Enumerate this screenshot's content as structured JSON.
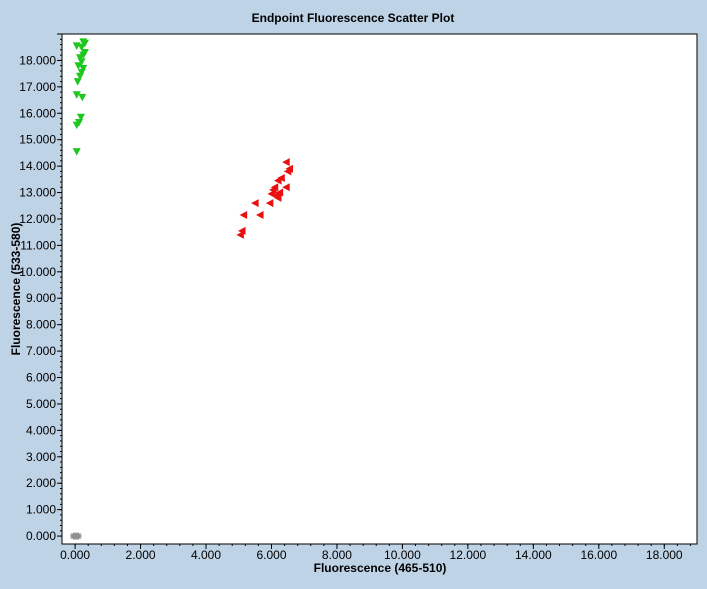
{
  "chart_data": {
    "type": "scatter",
    "title": "Endpoint Fluorescence Scatter Plot",
    "xlabel": "Fluorescence (465-510)",
    "ylabel": "Fluorescence (533-580)",
    "xlim": [
      -0.4,
      19.0
    ],
    "ylim": [
      -0.3,
      19.0
    ],
    "x_ticks": [
      "0.000",
      "2.000",
      "4.000",
      "6.000",
      "8.000",
      "10.000",
      "12.000",
      "14.000",
      "16.000",
      "18.000"
    ],
    "y_ticks": [
      "0.000",
      "1.000",
      "2.000",
      "3.000",
      "4.000",
      "5.000",
      "6.000",
      "7.000",
      "8.000",
      "9.000",
      "10.000",
      "11.000",
      "12.000",
      "13.000",
      "14.000",
      "15.000",
      "16.000",
      "17.000",
      "18.000"
    ],
    "grid": false,
    "series": [
      {
        "color": "#1ec81e",
        "marker": "triangle-down",
        "points": [
          [
            0.05,
            14.55
          ],
          [
            0.05,
            15.55
          ],
          [
            0.12,
            15.65
          ],
          [
            0.18,
            15.85
          ],
          [
            0.05,
            16.7
          ],
          [
            0.22,
            16.6
          ],
          [
            0.08,
            17.2
          ],
          [
            0.15,
            17.4
          ],
          [
            0.2,
            17.55
          ],
          [
            0.25,
            17.7
          ],
          [
            0.1,
            17.8
          ],
          [
            0.2,
            17.95
          ],
          [
            0.15,
            18.1
          ],
          [
            0.25,
            18.2
          ],
          [
            0.3,
            18.3
          ],
          [
            0.05,
            18.55
          ],
          [
            0.2,
            18.5
          ],
          [
            0.3,
            18.65
          ],
          [
            0.25,
            18.7
          ]
        ]
      },
      {
        "color": "#e81010",
        "marker": "triangle-left",
        "points": [
          [
            5.05,
            11.4
          ],
          [
            5.1,
            11.55
          ],
          [
            5.15,
            12.15
          ],
          [
            5.5,
            12.6
          ],
          [
            5.65,
            12.15
          ],
          [
            5.95,
            12.6
          ],
          [
            6.0,
            12.95
          ],
          [
            6.05,
            13.1
          ],
          [
            6.1,
            13.2
          ],
          [
            6.15,
            12.9
          ],
          [
            6.2,
            12.8
          ],
          [
            6.25,
            13.0
          ],
          [
            6.2,
            13.45
          ],
          [
            6.3,
            13.55
          ],
          [
            6.45,
            13.2
          ],
          [
            6.5,
            13.8
          ],
          [
            6.55,
            13.9
          ],
          [
            6.45,
            14.15
          ]
        ]
      },
      {
        "color": "#909090",
        "marker": "asterisk",
        "points": [
          [
            -0.05,
            0.0
          ],
          [
            0.0,
            0.0
          ],
          [
            0.05,
            0.0
          ],
          [
            0.1,
            0.0
          ]
        ]
      }
    ]
  }
}
